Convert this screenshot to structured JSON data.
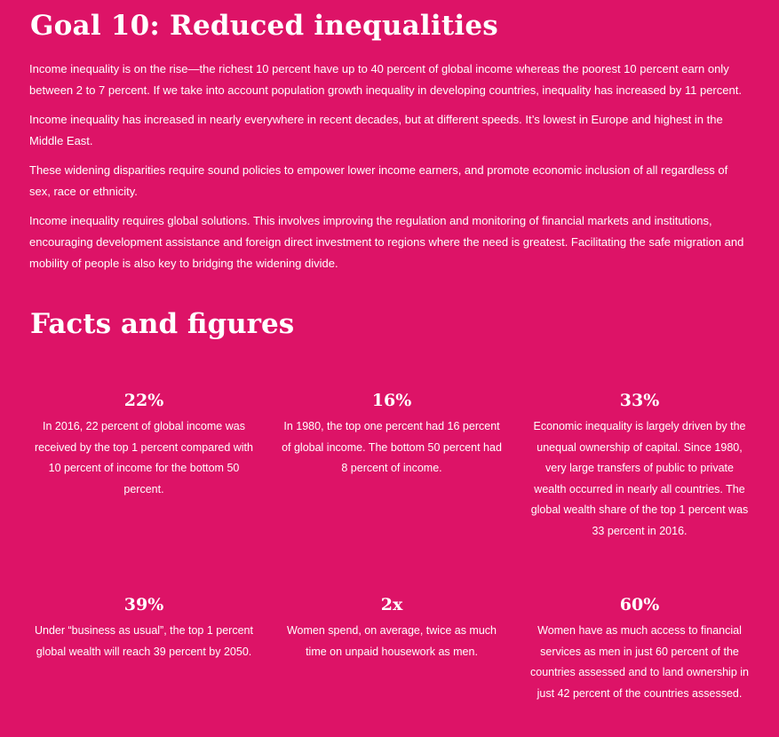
{
  "goal": {
    "title": "Goal 10: Reduced inequalities",
    "paragraphs": [
      "Income inequality is on the rise—the richest 10 percent have up to 40 percent of global income whereas the poorest 10 percent earn only between 2 to 7 percent. If we take into account population growth inequality in developing countries, inequality has increased by 11 percent.",
      "Income inequality has increased in nearly everywhere in recent decades, but at different speeds. It’s lowest in Europe and highest in the Middle East.",
      "These widening disparities require sound policies to empower lower income earners, and promote economic inclusion of all regardless of sex, race or ethnicity.",
      "Income inequality requires global solutions. This involves improving the regulation and monitoring of financial markets and institutions, encouraging development assistance and foreign direct investment to regions where the need is greatest. Facilitating the safe migration and mobility of people is also key to bridging the widening divide."
    ]
  },
  "facts": {
    "title": "Facts and figures",
    "items": [
      {
        "figure": "22%",
        "text": "In 2016, 22 percent of global income was received by the top 1 percent compared with 10 percent of income for the bottom 50 percent."
      },
      {
        "figure": "16%",
        "text": "In 1980, the top one percent had 16 percent of global income. The bottom 50 percent had 8 percent of income."
      },
      {
        "figure": "33%",
        "text": "Economic inequality is largely driven by the unequal ownership of capital. Since 1980, very large transfers of public to private wealth occurred in nearly all countries. The global wealth share of the top 1 percent was 33 percent in 2016."
      },
      {
        "figure": "39%",
        "text": "Under “business as usual”, the top 1 percent global wealth will reach 39 percent by 2050."
      },
      {
        "figure": "2x",
        "text": "Women spend, on average, twice as much time on unpaid housework as men."
      },
      {
        "figure": "60%",
        "text": "Women have as much access to financial services as men in just 60 percent of the countries assessed and to land ownership in just 42 percent of the countries assessed."
      }
    ]
  },
  "colors": {
    "background": "#dd1367",
    "text": "#ffffff"
  }
}
